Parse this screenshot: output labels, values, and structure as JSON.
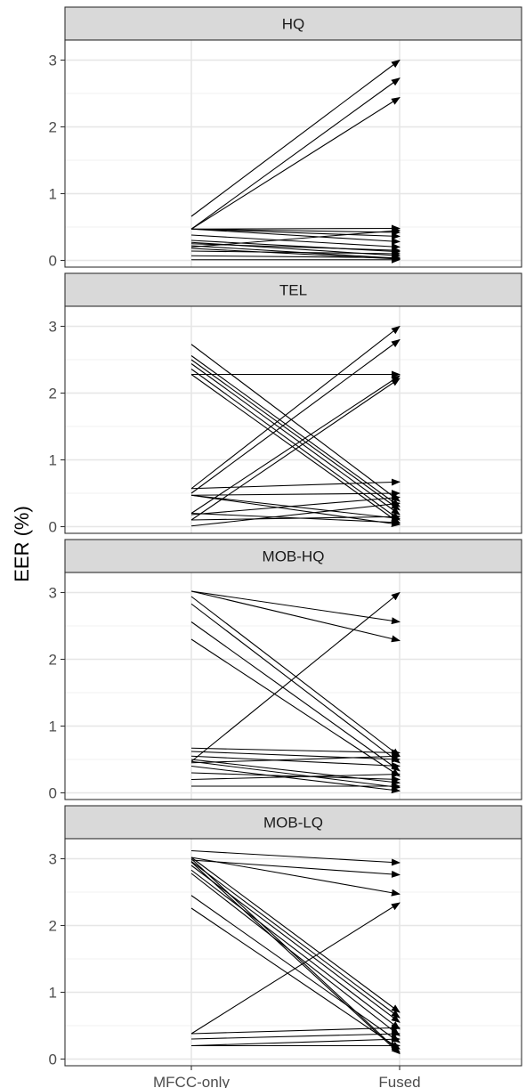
{
  "chart_data": {
    "type": "slope",
    "ylabel": "EER (%)",
    "xlabel": "",
    "x": [
      "MFCC-only",
      "Fused"
    ],
    "ylim": [
      -0.1,
      3.3
    ],
    "y_ticks": [
      "0",
      "1",
      "2",
      "3"
    ],
    "grid": true,
    "legend": "none",
    "panels": [
      {
        "name": "HQ",
        "segments": [
          [
            0.66,
            3.0
          ],
          [
            0.47,
            2.73
          ],
          [
            0.47,
            2.44
          ],
          [
            0.47,
            0.48
          ],
          [
            0.47,
            0.42
          ],
          [
            0.47,
            0.36
          ],
          [
            0.47,
            0.28
          ],
          [
            0.38,
            0.2
          ],
          [
            0.3,
            0.13
          ],
          [
            0.27,
            0.07
          ],
          [
            0.22,
            0.03
          ],
          [
            0.18,
            0.02
          ],
          [
            0.14,
            0.1
          ],
          [
            0.07,
            0.04
          ],
          [
            0.01,
            0.01
          ],
          [
            0.2,
            0.45
          ],
          [
            0.25,
            0.15
          ]
        ]
      },
      {
        "name": "TEL",
        "segments": [
          [
            2.73,
            0.38
          ],
          [
            2.56,
            0.3
          ],
          [
            2.5,
            0.25
          ],
          [
            2.44,
            0.18
          ],
          [
            2.36,
            0.1
          ],
          [
            2.28,
            0.05
          ],
          [
            2.28,
            2.28
          ],
          [
            0.57,
            3.0
          ],
          [
            0.5,
            2.8
          ],
          [
            0.2,
            2.26
          ],
          [
            0.1,
            2.22
          ],
          [
            0.57,
            0.67
          ],
          [
            0.47,
            0.5
          ],
          [
            0.47,
            0.12
          ],
          [
            0.47,
            0.03
          ],
          [
            0.18,
            0.44
          ],
          [
            0.1,
            0.15
          ],
          [
            0.01,
            0.35
          ],
          [
            0.2,
            0.06
          ]
        ]
      },
      {
        "name": "MOB-HQ",
        "segments": [
          [
            3.02,
            2.56
          ],
          [
            3.02,
            2.28
          ],
          [
            2.94,
            0.55
          ],
          [
            2.83,
            0.45
          ],
          [
            2.56,
            0.33
          ],
          [
            2.3,
            0.25
          ],
          [
            0.47,
            3.0
          ],
          [
            0.67,
            0.6
          ],
          [
            0.62,
            0.5
          ],
          [
            0.55,
            0.4
          ],
          [
            0.5,
            0.15
          ],
          [
            0.47,
            0.08
          ],
          [
            0.4,
            0.03
          ],
          [
            0.3,
            0.2
          ],
          [
            0.2,
            0.28
          ],
          [
            0.1,
            0.1
          ],
          [
            0.45,
            0.55
          ]
        ]
      },
      {
        "name": "MOB-LQ",
        "segments": [
          [
            3.12,
            2.94
          ],
          [
            2.98,
            2.76
          ],
          [
            3.02,
            2.47
          ],
          [
            3.02,
            0.7
          ],
          [
            2.96,
            0.62
          ],
          [
            2.9,
            0.55
          ],
          [
            2.83,
            0.45
          ],
          [
            2.78,
            0.35
          ],
          [
            2.45,
            0.25
          ],
          [
            2.26,
            0.15
          ],
          [
            3.0,
            0.1
          ],
          [
            2.95,
            0.08
          ],
          [
            0.38,
            2.34
          ],
          [
            0.38,
            0.47
          ],
          [
            0.3,
            0.38
          ],
          [
            0.2,
            0.3
          ],
          [
            0.2,
            0.2
          ]
        ]
      }
    ]
  }
}
